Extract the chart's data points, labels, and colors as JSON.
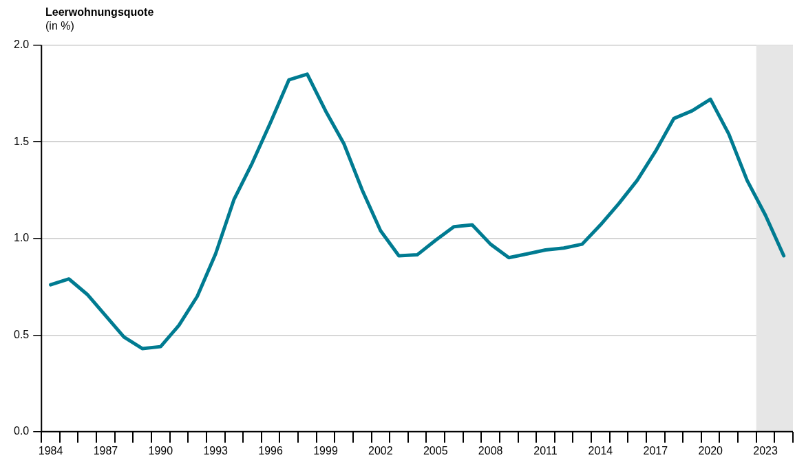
{
  "chart_data": {
    "type": "line",
    "title": "Leerwohnungsquote",
    "subtitle": "(in %)",
    "x": [
      1984,
      1985,
      1986,
      1987,
      1988,
      1989,
      1990,
      1991,
      1992,
      1993,
      1994,
      1995,
      1996,
      1997,
      1998,
      1999,
      2000,
      2001,
      2002,
      2003,
      2004,
      2005,
      2006,
      2007,
      2008,
      2009,
      2010,
      2011,
      2012,
      2013,
      2014,
      2015,
      2016,
      2017,
      2018,
      2019,
      2020,
      2021,
      2022,
      2023,
      2024
    ],
    "series": [
      {
        "color": "#007b91",
        "values": [
          0.76,
          0.79,
          0.71,
          0.6,
          0.49,
          0.43,
          0.44,
          0.55,
          0.7,
          0.92,
          1.2,
          1.39,
          1.6,
          1.82,
          1.85,
          1.66,
          1.49,
          1.25,
          1.04,
          0.91,
          0.915,
          0.99,
          1.06,
          1.07,
          0.97,
          0.9,
          0.92,
          0.94,
          0.95,
          0.97,
          1.07,
          1.18,
          1.3,
          1.45,
          1.62,
          1.66,
          1.72,
          1.54,
          1.3,
          1.12,
          0.91
        ]
      }
    ],
    "xlim": [
      1983.5,
      2024.5
    ],
    "xticks": [
      {
        "value": 1983.5,
        "label": null
      },
      {
        "value": 1984,
        "label": "1984"
      },
      {
        "value": 1984.5,
        "label": null
      },
      {
        "value": 1985.5,
        "label": null
      },
      {
        "value": 1986.5,
        "label": null
      },
      {
        "value": 1987,
        "label": "1987"
      },
      {
        "value": 1987.5,
        "label": null
      },
      {
        "value": 1988.5,
        "label": null
      },
      {
        "value": 1989.5,
        "label": null
      },
      {
        "value": 1990,
        "label": "1990"
      },
      {
        "value": 1990.5,
        "label": null
      },
      {
        "value": 1991.5,
        "label": null
      },
      {
        "value": 1992.5,
        "label": null
      },
      {
        "value": 1993,
        "label": "1993"
      },
      {
        "value": 1993.5,
        "label": null
      },
      {
        "value": 1994.5,
        "label": null
      },
      {
        "value": 1995.5,
        "label": null
      },
      {
        "value": 1996,
        "label": "1996"
      },
      {
        "value": 1996.5,
        "label": null
      },
      {
        "value": 1997.5,
        "label": null
      },
      {
        "value": 1998.5,
        "label": null
      },
      {
        "value": 1999,
        "label": "1999"
      },
      {
        "value": 1999.5,
        "label": null
      },
      {
        "value": 2000.5,
        "label": null
      },
      {
        "value": 2001.5,
        "label": null
      },
      {
        "value": 2002,
        "label": "2002"
      },
      {
        "value": 2002.5,
        "label": null
      },
      {
        "value": 2003.5,
        "label": null
      },
      {
        "value": 2004.5,
        "label": null
      },
      {
        "value": 2005,
        "label": "2005"
      },
      {
        "value": 2005.5,
        "label": null
      },
      {
        "value": 2006.5,
        "label": null
      },
      {
        "value": 2007.5,
        "label": null
      },
      {
        "value": 2008,
        "label": "2008"
      },
      {
        "value": 2008.5,
        "label": null
      },
      {
        "value": 2009.5,
        "label": null
      },
      {
        "value": 2010.5,
        "label": null
      },
      {
        "value": 2011,
        "label": "2011"
      },
      {
        "value": 2011.5,
        "label": null
      },
      {
        "value": 2012.5,
        "label": null
      },
      {
        "value": 2013.5,
        "label": null
      },
      {
        "value": 2014,
        "label": "2014"
      },
      {
        "value": 2014.5,
        "label": null
      },
      {
        "value": 2015.5,
        "label": null
      },
      {
        "value": 2016.5,
        "label": null
      },
      {
        "value": 2017,
        "label": "2017"
      },
      {
        "value": 2017.5,
        "label": null
      },
      {
        "value": 2018.5,
        "label": null
      },
      {
        "value": 2019.5,
        "label": null
      },
      {
        "value": 2020,
        "label": "2020"
      },
      {
        "value": 2020.5,
        "label": null
      },
      {
        "value": 2021.5,
        "label": null
      },
      {
        "value": 2022.5,
        "label": null
      },
      {
        "value": 2023,
        "label": "2023"
      },
      {
        "value": 2023.5,
        "label": null
      },
      {
        "value": 2024.5,
        "label": null
      }
    ],
    "ylim": [
      0,
      2
    ],
    "yticks": [
      {
        "value": 0,
        "label": "0.0"
      },
      {
        "value": 0.5,
        "label": "0.5"
      },
      {
        "value": 1,
        "label": "1.0"
      },
      {
        "value": 1.5,
        "label": "1.5"
      },
      {
        "value": 2,
        "label": "2.0"
      }
    ],
    "grid": "y",
    "legend": false,
    "marker": "none",
    "line_style": "solid",
    "bands": [
      {
        "axis": "x",
        "from": 2022.5,
        "to": 2024.5,
        "color": "#e6e6e6"
      }
    ]
  }
}
